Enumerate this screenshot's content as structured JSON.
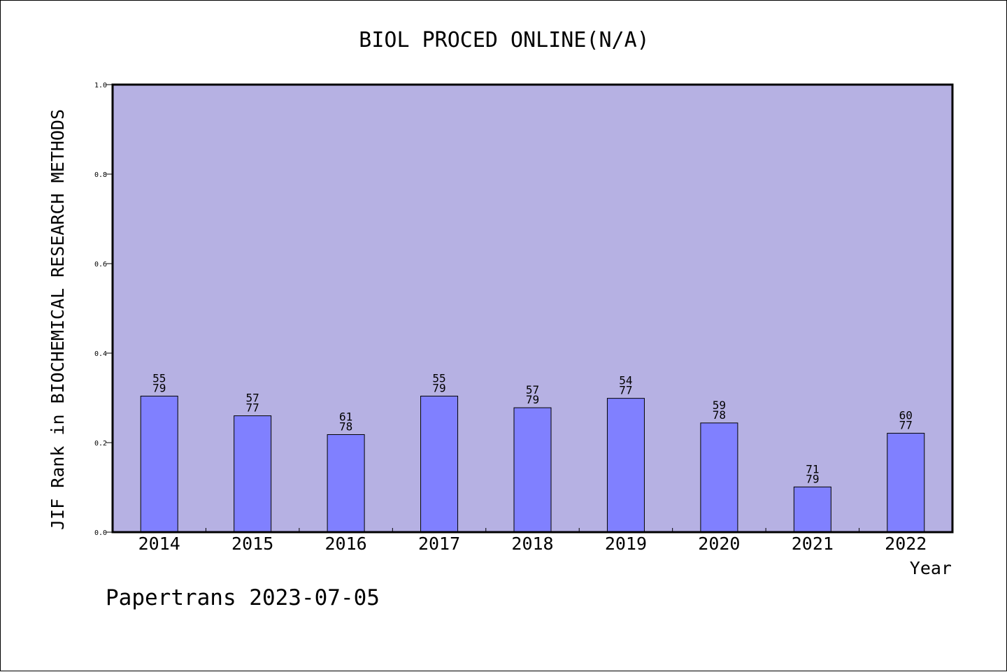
{
  "footer": {
    "credit": "Papertrans 2023-07-05"
  },
  "colors": {
    "plot_bg": "#b6b1e3",
    "bar_fill": "#8080ff",
    "axis": "#000000"
  },
  "chart_data": {
    "type": "bar",
    "title": "BIOL PROCED ONLINE(N/A)",
    "xlabel": "Year",
    "ylabel": "JIF Rank in BIOCHEMICAL RESEARCH METHODS",
    "ylim": [
      0,
      1
    ],
    "yticks": [
      "0.0",
      "0.2",
      "0.4",
      "0.6",
      "0.8",
      "1.0"
    ],
    "grid": false,
    "categories": [
      "2014",
      "2015",
      "2016",
      "2017",
      "2018",
      "2019",
      "2020",
      "2021",
      "2022"
    ],
    "ranks": [
      "55",
      "57",
      "61",
      "55",
      "57",
      "54",
      "59",
      "71",
      "60"
    ],
    "totals": [
      "79",
      "77",
      "78",
      "79",
      "79",
      "77",
      "78",
      "79",
      "77"
    ],
    "values": [
      0.304,
      0.26,
      0.218,
      0.304,
      0.278,
      0.299,
      0.244,
      0.101,
      0.221
    ]
  }
}
